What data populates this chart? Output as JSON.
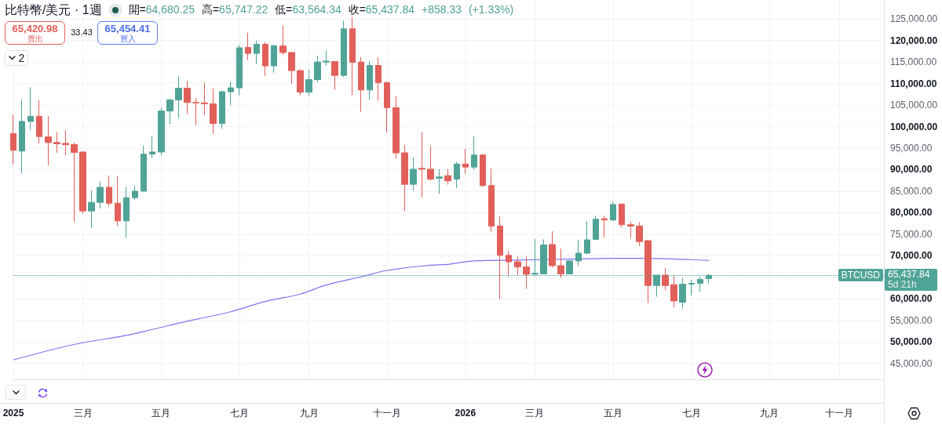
{
  "chart_data": {
    "type": "candlestick",
    "title": "比特幣/美元 · 1週",
    "subtitle": "開=64,680.25 高=65,747.22 低=63,564.34 收=65,437.84 +858.33 (+1.33%)",
    "xlim": [
      "2025-01-06",
      "2026-12-08"
    ],
    "ylim": [
      41300,
      129400
    ],
    "xticks": [
      {
        "value": "2025-01-06",
        "label": "2025"
      },
      {
        "value": "2025-03-03",
        "label": "三月"
      },
      {
        "value": "2025-05-05",
        "label": "五月"
      },
      {
        "value": "2025-07-07",
        "label": "七月"
      },
      {
        "value": "2025-09-01",
        "label": "九月"
      },
      {
        "value": "2025-11-03",
        "label": "十一月"
      },
      {
        "value": "2026-01-05",
        "label": "2026"
      },
      {
        "value": "2026-03-02",
        "label": "三月"
      },
      {
        "value": "2026-05-04",
        "label": "五月"
      },
      {
        "value": "2026-07-06",
        "label": "七月"
      },
      {
        "value": "2026-09-07",
        "label": "九月"
      },
      {
        "value": "2026-11-02",
        "label": "十一月"
      }
    ],
    "yticks": [
      {
        "value": 45000,
        "label": "45,000.00"
      },
      {
        "value": 50000,
        "label": "50,000.00"
      },
      {
        "value": 55000,
        "label": "55,000.00"
      },
      {
        "value": 60000,
        "label": "60,000.00"
      },
      {
        "value": 65000,
        "label": null
      },
      {
        "value": 70000,
        "label": "70,000.00"
      },
      {
        "value": 75000,
        "label": "75,000.00"
      },
      {
        "value": 80000,
        "label": "80,000.00"
      },
      {
        "value": 85000,
        "label": "85,000.00"
      },
      {
        "value": 90000,
        "label": "90,000.00"
      },
      {
        "value": 95000,
        "label": "95,000.00"
      },
      {
        "value": 100000,
        "label": "100,000.00"
      },
      {
        "value": 105000,
        "label": "105,000.00"
      },
      {
        "value": 110000,
        "label": "110,000.00"
      },
      {
        "value": 115000,
        "label": "115,000.00"
      },
      {
        "value": 120000,
        "label": "120,000.00"
      },
      {
        "value": 125000,
        "label": "125,000.00"
      }
    ],
    "grid": true,
    "series": [
      {
        "type": "line",
        "color": "#7b74f2",
        "x": [
          "2025-01-06",
          "2025-02-24",
          "2025-04-07",
          "2025-04-28",
          "2025-05-26",
          "2025-06-30",
          "2025-07-28",
          "2025-08-25",
          "2025-09-15",
          "2025-10-13",
          "2025-11-03",
          "2025-12-08",
          "2025-12-22",
          "2026-01-12",
          "2026-02-16",
          "2026-03-30",
          "2026-05-04",
          "2026-05-25",
          "2026-07-06",
          "2026-07-20"
        ],
        "values": [
          45800,
          49400,
          51500,
          52900,
          54800,
          57000,
          59400,
          61100,
          63200,
          65100,
          66600,
          67800,
          68000,
          68800,
          69000,
          69200,
          69400,
          69400,
          69100,
          68900
        ]
      },
      {
        "x": [
          "2025-01-06",
          "2025-01-13",
          "2025-01-20",
          "2025-01-27",
          "2025-02-03",
          "2025-02-10",
          "2025-02-17",
          "2025-02-24",
          "2025-03-03",
          "2025-03-10",
          "2025-03-17",
          "2025-03-24",
          "2025-03-31",
          "2025-04-07",
          "2025-04-14",
          "2025-04-21",
          "2025-04-28",
          "2025-05-05",
          "2025-05-12",
          "2025-05-19",
          "2025-05-26",
          "2025-06-02",
          "2025-06-09",
          "2025-06-16",
          "2025-06-23",
          "2025-06-30",
          "2025-07-07",
          "2025-07-14",
          "2025-07-21",
          "2025-07-28",
          "2025-08-04",
          "2025-08-11",
          "2025-08-18",
          "2025-08-25",
          "2025-09-01",
          "2025-09-08",
          "2025-09-15",
          "2025-09-22",
          "2025-09-29",
          "2025-10-06",
          "2025-10-13",
          "2025-10-20",
          "2025-10-27",
          "2025-11-03",
          "2025-11-10",
          "2025-11-17",
          "2025-11-24",
          "2025-12-01",
          "2025-12-08",
          "2025-12-15",
          "2025-12-22",
          "2025-12-29",
          "2026-01-05",
          "2026-01-12",
          "2026-01-19",
          "2026-01-26",
          "2026-02-02",
          "2026-02-09",
          "2026-02-16",
          "2026-02-23",
          "2026-03-02",
          "2026-03-09",
          "2026-03-16",
          "2026-03-23",
          "2026-03-30",
          "2026-04-06",
          "2026-04-13",
          "2026-04-20",
          "2026-04-27",
          "2026-05-04",
          "2026-05-11",
          "2026-05-18",
          "2026-05-25",
          "2026-06-01",
          "2026-06-08",
          "2026-06-15",
          "2026-06-22",
          "2026-06-29",
          "2026-07-06",
          "2026-07-13",
          "2026-07-20"
        ],
        "ohlc": [
          [
            98400,
            102700,
            91200,
            94500
          ],
          [
            94300,
            106300,
            89200,
            101200
          ],
          [
            101200,
            109100,
            99200,
            102400
          ],
          [
            102400,
            106100,
            96100,
            97700
          ],
          [
            97600,
            102500,
            91000,
            96300
          ],
          [
            96300,
            98700,
            93900,
            96000
          ],
          [
            96100,
            99200,
            93300,
            95800
          ],
          [
            95800,
            96300,
            77900,
            94000
          ],
          [
            94100,
            94200,
            79800,
            80400
          ],
          [
            80400,
            85200,
            76500,
            82400
          ],
          [
            82400,
            87200,
            81000,
            85900
          ],
          [
            85900,
            88600,
            81500,
            82200
          ],
          [
            82200,
            88400,
            76900,
            78100
          ],
          [
            78100,
            86000,
            74200,
            83500
          ],
          [
            83500,
            86300,
            83000,
            85000
          ],
          [
            85000,
            95600,
            84900,
            93600
          ],
          [
            93600,
            97700,
            92700,
            94100
          ],
          [
            94100,
            104400,
            93300,
            103600
          ],
          [
            103600,
            106400,
            100600,
            106200
          ],
          [
            106200,
            111700,
            102000,
            108900
          ],
          [
            108900,
            110600,
            102900,
            105600
          ],
          [
            105600,
            106600,
            100300,
            105500
          ],
          [
            105500,
            110300,
            102700,
            105300
          ],
          [
            105300,
            108800,
            98300,
            100700
          ],
          [
            100700,
            108300,
            99500,
            108100
          ],
          [
            108100,
            110400,
            105000,
            109000
          ],
          [
            109000,
            119000,
            107300,
            118300
          ],
          [
            118400,
            121800,
            115500,
            117000
          ],
          [
            117000,
            120000,
            114500,
            119100
          ],
          [
            119100,
            119600,
            111800,
            114100
          ],
          [
            114100,
            118900,
            112500,
            118800
          ],
          [
            118700,
            123500,
            116700,
            117200
          ],
          [
            117200,
            117400,
            110000,
            113000
          ],
          [
            113000,
            113300,
            107300,
            108000
          ],
          [
            108000,
            113200,
            107100,
            110900
          ],
          [
            110900,
            116500,
            110300,
            115000
          ],
          [
            115000,
            117700,
            114100,
            115200
          ],
          [
            115100,
            115200,
            108500,
            111900
          ],
          [
            111900,
            124600,
            111500,
            122700
          ],
          [
            122700,
            125400,
            107300,
            114900
          ],
          [
            115000,
            116100,
            103400,
            108500
          ],
          [
            108500,
            115100,
            106200,
            114200
          ],
          [
            114200,
            116100,
            106000,
            110200
          ],
          [
            110200,
            110400,
            98600,
            104400
          ],
          [
            104400,
            107100,
            92600,
            93900
          ],
          [
            93900,
            95700,
            80400,
            86600
          ],
          [
            86600,
            92900,
            85100,
            90100
          ],
          [
            90300,
            98700,
            83600,
            90100
          ],
          [
            90100,
            95600,
            87500,
            87800
          ],
          [
            88000,
            90100,
            84400,
            88300
          ],
          [
            88600,
            90100,
            86500,
            87400
          ],
          [
            87800,
            91800,
            85700,
            91300
          ],
          [
            91300,
            94800,
            89000,
            90600
          ],
          [
            90600,
            97700,
            90000,
            93400
          ],
          [
            93400,
            93500,
            86000,
            86300
          ],
          [
            86300,
            90300,
            75600,
            76900
          ],
          [
            76900,
            79100,
            59900,
            70100
          ],
          [
            70100,
            71100,
            65100,
            68600
          ],
          [
            68600,
            69800,
            65500,
            67400
          ],
          [
            67400,
            69800,
            62300,
            65700
          ],
          [
            65700,
            73900,
            65200,
            65900
          ],
          [
            65800,
            73800,
            65700,
            72500
          ],
          [
            72600,
            75700,
            67200,
            67700
          ],
          [
            67700,
            71700,
            64900,
            65800
          ],
          [
            65800,
            68800,
            65700,
            68800
          ],
          [
            68800,
            73700,
            67600,
            70600
          ],
          [
            70600,
            78100,
            70400,
            73700
          ],
          [
            73800,
            79300,
            73800,
            78500
          ],
          [
            78600,
            79300,
            74300,
            78300
          ],
          [
            78300,
            82500,
            78100,
            81900
          ],
          [
            82000,
            82100,
            76600,
            77200
          ],
          [
            77200,
            77900,
            74200,
            76900
          ],
          [
            76900,
            77800,
            72300,
            73300
          ],
          [
            73500,
            73600,
            59000,
            63100
          ],
          [
            63100,
            65500,
            60500,
            65500
          ],
          [
            65500,
            67100,
            62000,
            63100
          ],
          [
            63300,
            65400,
            58000,
            59500
          ],
          [
            59200,
            64800,
            57700,
            63400
          ],
          [
            63400,
            64500,
            60800,
            63600
          ],
          [
            63600,
            65200,
            61700,
            64500
          ],
          [
            64680.25,
            65747.22,
            63564.34,
            65437.84
          ]
        ],
        "colors": [
          "#e2605a",
          "#50a397",
          "#50a397",
          "#e2605a",
          "#e2605a",
          "#e2605a",
          "#e2605a",
          "#e2605a",
          "#e2605a",
          "#50a397",
          "#50a397",
          "#e2605a",
          "#e2605a",
          "#50a397",
          "#50a397",
          "#50a397",
          "#50a397",
          "#50a397",
          "#50a397",
          "#50a397",
          "#e2605a",
          "#e2605a",
          "#e2605a",
          "#e2605a",
          "#50a397",
          "#50a397",
          "#50a397",
          "#e2605a",
          "#50a397",
          "#e2605a",
          "#50a397",
          "#e2605a",
          "#e2605a",
          "#e2605a",
          "#50a397",
          "#50a397",
          "#50a397",
          "#e2605a",
          "#50a397",
          "#e2605a",
          "#e2605a",
          "#50a397",
          "#e2605a",
          "#e2605a",
          "#e2605a",
          "#e2605a",
          "#50a397",
          "#e2605a",
          "#e2605a",
          "#50a397",
          "#e2605a",
          "#50a397",
          "#e2605a",
          "#50a397",
          "#e2605a",
          "#e2605a",
          "#e2605a",
          "#e2605a",
          "#e2605a",
          "#e2605a",
          "#50a397",
          "#50a397",
          "#e2605a",
          "#e2605a",
          "#50a397",
          "#50a397",
          "#50a397",
          "#50a397",
          "#e2605a",
          "#50a397",
          "#e2605a",
          "#e2605a",
          "#e2605a",
          "#e2605a",
          "#50a397",
          "#e2605a",
          "#e2605a",
          "#50a397",
          "#50a397",
          "#50a397",
          "#50a397"
        ]
      }
    ],
    "ref_lines": [
      {
        "axis": "y",
        "value": 65437.84,
        "label": "BTCUSD",
        "color": "#50a397",
        "line_style": "dotted"
      }
    ],
    "annotations": [
      "65,420.98",
      "賣出",
      "33.43",
      "65,454.41",
      "買入",
      "2",
      "65,437.84",
      "5d 21h"
    ]
  }
}
